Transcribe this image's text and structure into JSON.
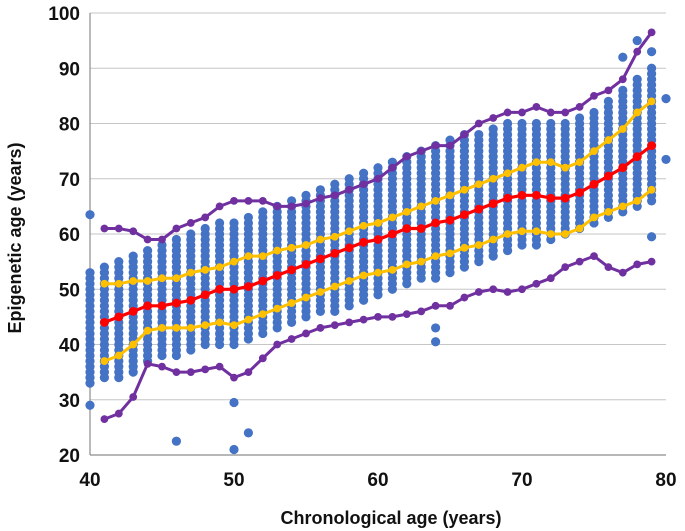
{
  "chart_data": {
    "type": "scatter",
    "title": "",
    "xlabel": "Chronological  age (years)",
    "ylabel": "Epigenetic  age (years)",
    "xlim": [
      40,
      80
    ],
    "ylim": [
      20,
      100
    ],
    "x_ticks": [
      40,
      50,
      60,
      70,
      80
    ],
    "y_ticks": [
      20,
      30,
      40,
      50,
      60,
      70,
      80,
      90,
      100
    ],
    "grid": "horizontal",
    "legend": "none",
    "colors": {
      "points": "#4472c4",
      "median": "#ff0000",
      "inner_band": "#ffc000",
      "outer_band": "#7030a0"
    },
    "sample_spreads": [
      {
        "x": 40,
        "y_min": 33,
        "y_max": 53
      },
      {
        "x": 41,
        "y_min": 34,
        "y_max": 54
      },
      {
        "x": 42,
        "y_min": 34,
        "y_max": 55
      },
      {
        "x": 43,
        "y_min": 35,
        "y_max": 56
      },
      {
        "x": 44,
        "y_min": 37,
        "y_max": 57
      },
      {
        "x": 45,
        "y_min": 38,
        "y_max": 58
      },
      {
        "x": 46,
        "y_min": 38,
        "y_max": 59
      },
      {
        "x": 47,
        "y_min": 39,
        "y_max": 60
      },
      {
        "x": 48,
        "y_min": 40,
        "y_max": 61
      },
      {
        "x": 49,
        "y_min": 40,
        "y_max": 62
      },
      {
        "x": 50,
        "y_min": 40,
        "y_max": 62
      },
      {
        "x": 51,
        "y_min": 41,
        "y_max": 63
      },
      {
        "x": 52,
        "y_min": 42,
        "y_max": 64
      },
      {
        "x": 53,
        "y_min": 43,
        "y_max": 65
      },
      {
        "x": 54,
        "y_min": 44,
        "y_max": 66
      },
      {
        "x": 55,
        "y_min": 45,
        "y_max": 67
      },
      {
        "x": 56,
        "y_min": 46,
        "y_max": 68
      },
      {
        "x": 57,
        "y_min": 46,
        "y_max": 69
      },
      {
        "x": 58,
        "y_min": 47,
        "y_max": 70
      },
      {
        "x": 59,
        "y_min": 48,
        "y_max": 71
      },
      {
        "x": 60,
        "y_min": 49,
        "y_max": 72
      },
      {
        "x": 61,
        "y_min": 50,
        "y_max": 73
      },
      {
        "x": 62,
        "y_min": 51,
        "y_max": 74
      },
      {
        "x": 63,
        "y_min": 52,
        "y_max": 75
      },
      {
        "x": 64,
        "y_min": 52,
        "y_max": 76
      },
      {
        "x": 65,
        "y_min": 53,
        "y_max": 77
      },
      {
        "x": 66,
        "y_min": 54,
        "y_max": 78
      },
      {
        "x": 67,
        "y_min": 55,
        "y_max": 78
      },
      {
        "x": 68,
        "y_min": 56,
        "y_max": 79
      },
      {
        "x": 69,
        "y_min": 57,
        "y_max": 80
      },
      {
        "x": 70,
        "y_min": 58,
        "y_max": 80
      },
      {
        "x": 71,
        "y_min": 58,
        "y_max": 80
      },
      {
        "x": 72,
        "y_min": 59,
        "y_max": 80
      },
      {
        "x": 73,
        "y_min": 60,
        "y_max": 80
      },
      {
        "x": 74,
        "y_min": 61,
        "y_max": 81
      },
      {
        "x": 75,
        "y_min": 62,
        "y_max": 82
      },
      {
        "x": 76,
        "y_min": 63,
        "y_max": 84
      },
      {
        "x": 77,
        "y_min": 64,
        "y_max": 86
      },
      {
        "x": 78,
        "y_min": 65,
        "y_max": 88
      },
      {
        "x": 79,
        "y_min": 66,
        "y_max": 90
      }
    ],
    "outlier_points": [
      {
        "x": 40,
        "y": 63.5
      },
      {
        "x": 40,
        "y": 29
      },
      {
        "x": 46,
        "y": 22.5
      },
      {
        "x": 50,
        "y": 29.5
      },
      {
        "x": 50,
        "y": 21
      },
      {
        "x": 51,
        "y": 24
      },
      {
        "x": 64,
        "y": 43
      },
      {
        "x": 64,
        "y": 40.5
      },
      {
        "x": 79,
        "y": 93
      },
      {
        "x": 79,
        "y": 59.5
      },
      {
        "x": 80,
        "y": 84.5
      },
      {
        "x": 80,
        "y": 73.5
      },
      {
        "x": 78,
        "y": 95
      },
      {
        "x": 77,
        "y": 92
      }
    ],
    "series": [
      {
        "role": "median",
        "color": "#ff0000",
        "x": [
          41,
          42,
          43,
          44,
          45,
          46,
          47,
          48,
          49,
          50,
          51,
          52,
          53,
          54,
          55,
          56,
          57,
          58,
          59,
          60,
          61,
          62,
          63,
          64,
          65,
          66,
          67,
          68,
          69,
          70,
          71,
          72,
          73,
          74,
          75,
          76,
          77,
          78,
          79
        ],
        "y": [
          44,
          45,
          46,
          47,
          47,
          47.5,
          48,
          49,
          50,
          50,
          50.5,
          51.5,
          52.5,
          53.5,
          54.5,
          55.5,
          56.5,
          57.5,
          58.5,
          59,
          60,
          61,
          61,
          62,
          62.5,
          63.5,
          64.5,
          65.5,
          66.5,
          67,
          67,
          66.5,
          66.5,
          67.5,
          69,
          70.5,
          72,
          74,
          76
        ]
      },
      {
        "role": "upper-inner",
        "color": "#ffc000",
        "x": [
          41,
          42,
          43,
          44,
          45,
          46,
          47,
          48,
          49,
          50,
          51,
          52,
          53,
          54,
          55,
          56,
          57,
          58,
          59,
          60,
          61,
          62,
          63,
          64,
          65,
          66,
          67,
          68,
          69,
          70,
          71,
          72,
          73,
          74,
          75,
          76,
          77,
          78,
          79
        ],
        "y": [
          51,
          51,
          51.5,
          51.5,
          52,
          52,
          53,
          53.5,
          54,
          55,
          56,
          56,
          57,
          57.5,
          58,
          59,
          59.5,
          60.5,
          61.5,
          62,
          63,
          64,
          65,
          66,
          67,
          68,
          69,
          70,
          71,
          72,
          73,
          73,
          72,
          73,
          75,
          77,
          79,
          82,
          84
        ]
      },
      {
        "role": "lower-inner",
        "color": "#ffc000",
        "x": [
          41,
          42,
          43,
          44,
          45,
          46,
          47,
          48,
          49,
          50,
          51,
          52,
          53,
          54,
          55,
          56,
          57,
          58,
          59,
          60,
          61,
          62,
          63,
          64,
          65,
          66,
          67,
          68,
          69,
          70,
          71,
          72,
          73,
          74,
          75,
          76,
          77,
          78,
          79
        ],
        "y": [
          37,
          38,
          40,
          42.5,
          43,
          43,
          43,
          43.5,
          44,
          43.5,
          44.5,
          45.5,
          46.5,
          47.5,
          48.5,
          49.5,
          50.5,
          51.5,
          52.5,
          53,
          53.5,
          54.5,
          55,
          56,
          56.5,
          57.5,
          58,
          59,
          60,
          60.5,
          60.5,
          60,
          60,
          61,
          63,
          64,
          65,
          66,
          68
        ]
      },
      {
        "role": "upper-outer",
        "color": "#7030a0",
        "x": [
          41,
          42,
          43,
          44,
          45,
          46,
          47,
          48,
          49,
          50,
          51,
          52,
          53,
          54,
          55,
          56,
          57,
          58,
          59,
          60,
          61,
          62,
          63,
          64,
          65,
          66,
          67,
          68,
          69,
          70,
          71,
          72,
          73,
          74,
          75,
          76,
          77,
          78,
          79
        ],
        "y": [
          61,
          61,
          60.5,
          59,
          59,
          61,
          62,
          63,
          65,
          66,
          66,
          66,
          65,
          65,
          65.5,
          66.5,
          67,
          68,
          69,
          70,
          72,
          74,
          75,
          76,
          76,
          78,
          80,
          81,
          82,
          82,
          83,
          82,
          82,
          83,
          85,
          86,
          88,
          93,
          96.5
        ]
      },
      {
        "role": "lower-outer",
        "color": "#7030a0",
        "x": [
          41,
          42,
          43,
          44,
          45,
          46,
          47,
          48,
          49,
          50,
          51,
          52,
          53,
          54,
          55,
          56,
          57,
          58,
          59,
          60,
          61,
          62,
          63,
          64,
          65,
          66,
          67,
          68,
          69,
          70,
          71,
          72,
          73,
          74,
          75,
          76,
          77,
          78,
          79
        ],
        "y": [
          26.5,
          27.5,
          30.5,
          36.5,
          36,
          35,
          35,
          35.5,
          36,
          34,
          35,
          37.5,
          40,
          41,
          42,
          43,
          43.5,
          44,
          44.5,
          45,
          45,
          45.5,
          46,
          47,
          47,
          48.5,
          49.5,
          50,
          49.5,
          50,
          51,
          52,
          54,
          55,
          56,
          54,
          53,
          54.5,
          55
        ]
      }
    ]
  }
}
